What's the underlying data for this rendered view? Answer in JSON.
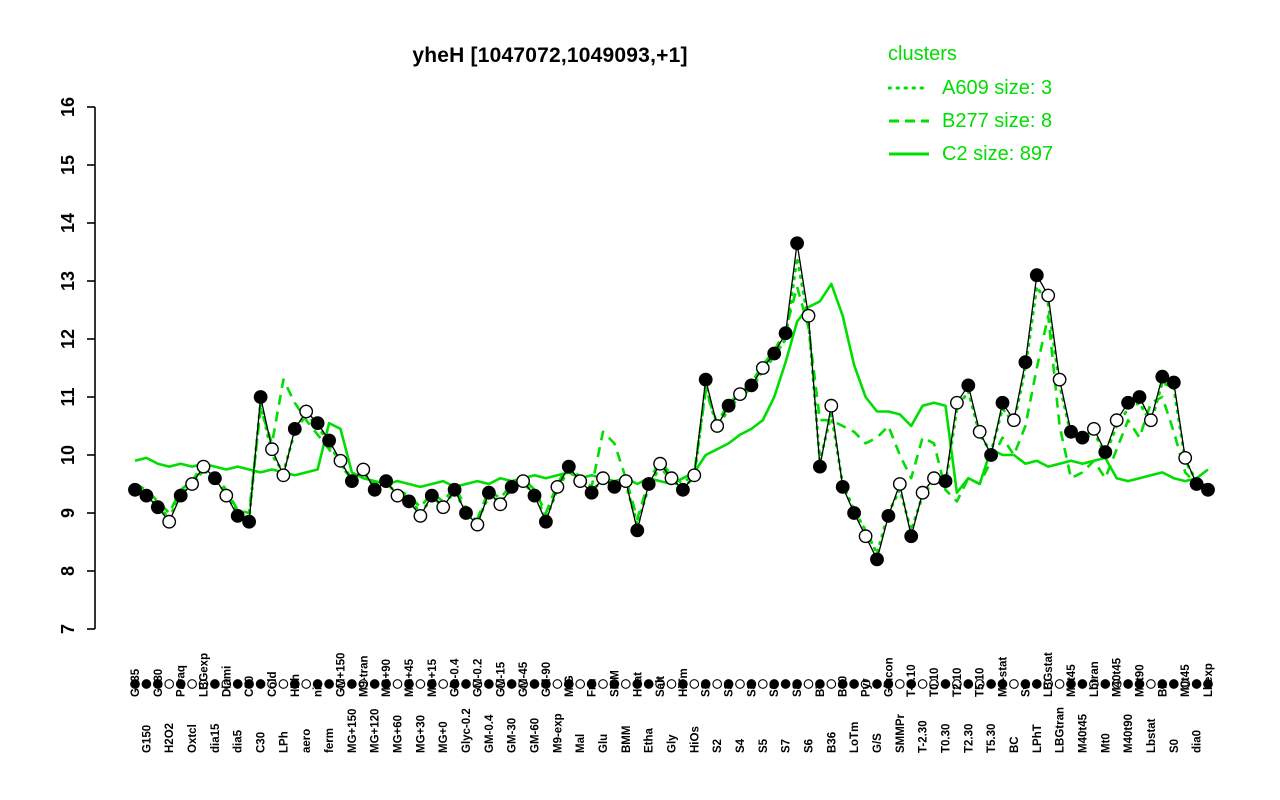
{
  "title": "yheH [1047072,1049093,+1]",
  "legend": {
    "title": "clusters",
    "color": "#00dd00",
    "entries": [
      {
        "label": "A609 size: 3",
        "style": "dotted"
      },
      {
        "label": "B277 size: 8",
        "style": "dashed"
      },
      {
        "label": "C2 size: 897",
        "style": "solid"
      }
    ]
  },
  "chart_data": {
    "type": "line",
    "title": "yheH [1047072,1049093,+1]",
    "xlabel": "",
    "ylabel": "",
    "ylim": [
      7,
      16
    ],
    "yticks": [
      7,
      8,
      9,
      10,
      11,
      12,
      13,
      14,
      15,
      16
    ],
    "grid": false,
    "legend_position": "top-right",
    "categories": [
      "G135",
      "G150",
      "G180",
      "H2O2",
      "Paraq",
      "Oxtcl",
      "LBGexp",
      "dia15",
      "Diami",
      "dia5",
      "C90",
      "C30",
      "Cold",
      "LPh",
      "HPh",
      "aero",
      "nit",
      "ferm",
      "GM+150",
      "MG+150",
      "M9-tran",
      "MG+120",
      "MG+90",
      "MG+60",
      "MG+45",
      "MG+30",
      "MG+15",
      "MG+0",
      "Glc-0.4",
      "Glyc-0.2",
      "GM-0.2",
      "GM-0.4",
      "GM-15",
      "GM-30",
      "GM-45",
      "GM-60",
      "GM-90",
      "M9-exp",
      "M/G",
      "Mal",
      "Fru",
      "Glu",
      "SMM",
      "BMM",
      "Heat",
      "Etha",
      "Salt",
      "Gly",
      "HiTm",
      "HiOs",
      "S1",
      "S2",
      "S3",
      "S4",
      "S3",
      "S5",
      "S6",
      "S7",
      "S8",
      "S6",
      "BT",
      "B36",
      "B60",
      "LoTm",
      "Pyr",
      "G/S",
      "Glucon",
      "SMMPr",
      "T-2.10",
      "T-2.30",
      "T0.10",
      "T0.30",
      "T2.10",
      "T2.30",
      "T5.10",
      "T5.30",
      "M9-stat",
      "BC",
      "Sw",
      "LPhT",
      "LBGstat",
      "LBGtran",
      "M0t45",
      "M40t45",
      "Lbtran",
      "Mt0",
      "M40t45",
      "M40t90",
      "M0t90",
      "Lbstat",
      "BI",
      "S0",
      "M0t45",
      "dia0",
      "Lbexp"
    ],
    "markers": [
      "f",
      "f",
      "f",
      "o",
      "f",
      "o",
      "o",
      "f",
      "o",
      "f",
      "f",
      "f",
      "o",
      "o",
      "f",
      "o",
      "f",
      "f",
      "o",
      "f",
      "o",
      "f",
      "f",
      "o",
      "f",
      "o",
      "f",
      "o",
      "f",
      "f",
      "o",
      "f",
      "o",
      "f",
      "o",
      "f",
      "f",
      "o",
      "f",
      "o",
      "f",
      "o",
      "f",
      "o",
      "f",
      "f",
      "o",
      "o",
      "f",
      "o",
      "f",
      "o",
      "f",
      "o",
      "f",
      "o",
      "f",
      "f",
      "f",
      "o",
      "f",
      "o",
      "f",
      "f",
      "o",
      "f",
      "f",
      "o",
      "f",
      "o",
      "o",
      "f",
      "o",
      "f",
      "o",
      "f",
      "f",
      "o",
      "f",
      "f",
      "o",
      "o",
      "f",
      "f",
      "o",
      "f",
      "o",
      "f",
      "f",
      "o",
      "f",
      "f",
      "o",
      "f",
      "f"
    ],
    "series": [
      {
        "name": "gene",
        "color": "#000000",
        "style": "solid",
        "values": [
          9.4,
          9.3,
          9.1,
          8.85,
          9.3,
          9.5,
          9.8,
          9.6,
          9.3,
          8.95,
          8.85,
          11.0,
          10.1,
          9.65,
          10.45,
          10.75,
          10.55,
          10.25,
          9.9,
          9.55,
          9.75,
          9.4,
          9.55,
          9.3,
          9.2,
          8.95,
          9.3,
          9.1,
          9.4,
          9.0,
          8.8,
          9.35,
          9.15,
          9.45,
          9.55,
          9.3,
          8.85,
          9.45,
          9.8,
          9.55,
          9.35,
          9.6,
          9.45,
          9.55,
          8.7,
          9.5,
          9.85,
          9.6,
          9.4,
          9.65,
          11.3,
          10.5,
          10.85,
          11.05,
          11.2,
          11.5,
          11.75,
          12.1,
          13.65,
          12.4,
          9.8,
          10.85,
          9.45,
          9.0,
          8.6,
          8.2,
          8.95,
          9.5,
          8.6,
          9.35,
          9.6,
          9.55,
          10.9,
          11.2,
          10.4,
          10.0,
          10.9,
          10.6,
          11.6,
          13.1,
          12.75,
          11.3,
          10.4,
          10.3,
          10.45,
          10.05,
          10.6,
          10.9,
          11.0,
          10.6,
          11.35,
          11.25,
          9.95,
          9.5,
          9.4
        ]
      },
      {
        "name": "A609",
        "color": "#00dd00",
        "style": "dotted",
        "values": [
          9.45,
          9.25,
          9.15,
          8.9,
          9.35,
          9.45,
          9.75,
          9.55,
          9.35,
          9.0,
          8.9,
          10.9,
          10.0,
          9.7,
          10.4,
          10.7,
          10.5,
          10.2,
          9.85,
          9.6,
          9.7,
          9.45,
          9.5,
          9.35,
          9.25,
          9.0,
          9.25,
          9.15,
          9.35,
          9.05,
          8.85,
          9.3,
          9.2,
          9.4,
          9.5,
          9.35,
          8.9,
          9.4,
          9.75,
          9.5,
          9.4,
          9.55,
          9.5,
          9.5,
          8.8,
          9.45,
          9.8,
          9.55,
          9.45,
          9.6,
          11.2,
          10.45,
          10.8,
          11.0,
          11.15,
          11.45,
          11.7,
          12.0,
          13.4,
          12.3,
          9.9,
          10.7,
          9.5,
          9.05,
          8.7,
          8.3,
          9.0,
          9.4,
          8.7,
          9.3,
          9.55,
          9.5,
          10.8,
          11.1,
          10.35,
          10.05,
          10.8,
          10.55,
          11.5,
          12.9,
          12.6,
          11.2,
          10.35,
          10.25,
          10.4,
          10.0,
          10.5,
          10.8,
          10.9,
          10.55,
          11.25,
          11.15,
          9.9,
          9.55,
          9.45
        ]
      },
      {
        "name": "B277",
        "color": "#00dd00",
        "style": "dashed",
        "values": [
          9.5,
          9.4,
          9.2,
          9.0,
          9.4,
          9.55,
          9.85,
          9.65,
          9.4,
          9.05,
          9.0,
          10.8,
          10.2,
          11.3,
          10.9,
          10.6,
          10.35,
          10.1,
          9.8,
          9.6,
          9.7,
          9.5,
          9.6,
          9.4,
          9.3,
          9.1,
          9.35,
          9.2,
          9.45,
          9.1,
          8.9,
          9.4,
          9.25,
          9.5,
          9.6,
          9.4,
          9.0,
          9.5,
          9.85,
          9.6,
          9.45,
          10.4,
          10.2,
          9.6,
          8.9,
          9.55,
          9.9,
          9.65,
          9.5,
          9.7,
          11.1,
          10.55,
          10.9,
          11.05,
          11.25,
          11.55,
          11.8,
          12.15,
          12.9,
          12.2,
          10.6,
          10.6,
          10.5,
          10.4,
          10.2,
          10.3,
          10.5,
          10.0,
          9.6,
          10.3,
          10.2,
          9.4,
          9.2,
          9.6,
          9.5,
          9.9,
          10.3,
          10.0,
          10.5,
          11.5,
          12.4,
          10.5,
          9.6,
          9.7,
          9.9,
          9.6,
          10.1,
          10.6,
          10.3,
          10.9,
          11.0,
          10.4,
          9.7,
          9.5,
          9.45
        ]
      },
      {
        "name": "C2",
        "color": "#00dd00",
        "style": "solid",
        "values": [
          9.9,
          9.95,
          9.85,
          9.8,
          9.85,
          9.8,
          9.85,
          9.8,
          9.75,
          9.8,
          9.75,
          9.7,
          9.75,
          9.7,
          9.65,
          9.7,
          9.75,
          10.55,
          10.45,
          9.7,
          9.6,
          9.55,
          9.5,
          9.55,
          9.5,
          9.45,
          9.5,
          9.55,
          9.45,
          9.5,
          9.55,
          9.5,
          9.6,
          9.55,
          9.6,
          9.65,
          9.6,
          9.65,
          9.7,
          9.6,
          9.65,
          9.6,
          9.55,
          9.6,
          9.5,
          9.6,
          9.55,
          9.5,
          9.6,
          9.7,
          10.0,
          10.1,
          10.2,
          10.35,
          10.45,
          10.6,
          11.0,
          11.6,
          12.3,
          12.55,
          12.65,
          12.95,
          12.4,
          11.55,
          11.0,
          10.75,
          10.75,
          10.7,
          10.5,
          10.85,
          10.9,
          10.85,
          9.35,
          9.6,
          9.5,
          10.1,
          10.0,
          10.0,
          9.85,
          9.9,
          9.8,
          9.85,
          9.9,
          9.85,
          9.9,
          9.95,
          9.6,
          9.55,
          9.6,
          9.65,
          9.7,
          9.6,
          9.55,
          9.6,
          9.75
        ]
      }
    ]
  }
}
